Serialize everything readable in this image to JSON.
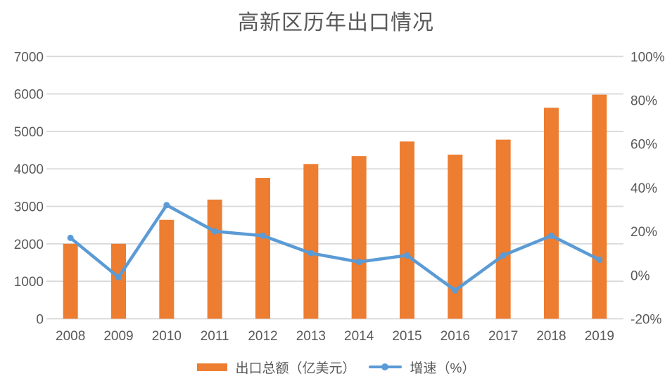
{
  "chart_data": {
    "type": "combo-bar-line",
    "title": "高新区历年出口情况",
    "categories": [
      "2008",
      "2009",
      "2010",
      "2011",
      "2012",
      "2013",
      "2014",
      "2015",
      "2016",
      "2017",
      "2018",
      "2019"
    ],
    "series": [
      {
        "name": "出口总额（亿美元）",
        "type": "bar",
        "axis": "left",
        "values": [
          2000,
          2000,
          2640,
          3180,
          3760,
          4130,
          4340,
          4730,
          4380,
          4780,
          5630,
          5980
        ]
      },
      {
        "name": "增速（%）",
        "type": "line",
        "axis": "right",
        "values": [
          17,
          -1,
          32,
          20,
          18,
          10,
          6,
          9,
          -7,
          9,
          18,
          7
        ]
      }
    ],
    "left_axis": {
      "min": 0,
      "max": 7000,
      "step": 1000,
      "tick_labels": [
        "0",
        "1000",
        "2000",
        "3000",
        "4000",
        "5000",
        "6000",
        "7000"
      ]
    },
    "right_axis": {
      "min": -20,
      "max": 100,
      "step": 20,
      "tick_labels": [
        "-20%",
        "0%",
        "20%",
        "40%",
        "60%",
        "80%",
        "100%"
      ]
    },
    "grid": "horizontal-on",
    "legend_position": "bottom",
    "colors": {
      "bar": "#ED7D31",
      "line": "#5B9BD5",
      "gridline": "#D9D9D9",
      "text": "#595959",
      "background": "#FFFFFF"
    }
  }
}
